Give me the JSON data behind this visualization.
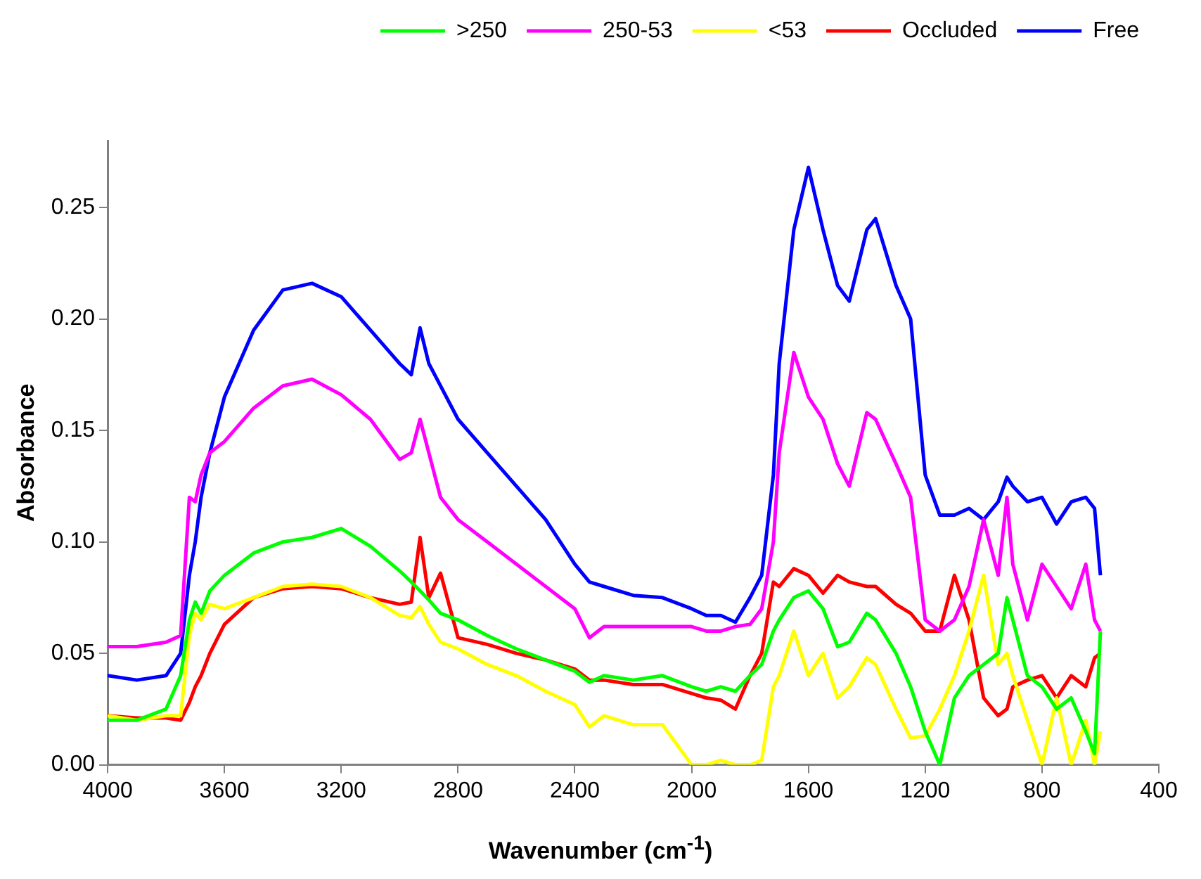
{
  "chart_data": {
    "type": "line",
    "xlabel": "Wavenumber (cm$^{-1}$)",
    "ylabel": "Absorbance",
    "legend": "top right",
    "grid": false,
    "marker": "none",
    "line_style": "solid",
    "x": [
      4000,
      3900,
      3800,
      3750,
      3720,
      3700,
      3680,
      3650,
      3600,
      3500,
      3400,
      3300,
      3200,
      3100,
      3000,
      2960,
      2930,
      2900,
      2860,
      2800,
      2700,
      2600,
      2500,
      2400,
      2350,
      2300,
      2200,
      2100,
      2000,
      1950,
      1900,
      1850,
      1800,
      1760,
      1720,
      1700,
      1650,
      1600,
      1550,
      1500,
      1460,
      1400,
      1370,
      1300,
      1250,
      1200,
      1150,
      1100,
      1050,
      1000,
      950,
      920,
      900,
      850,
      800,
      750,
      700,
      650,
      620,
      600
    ],
    "xlim": [
      4000,
      400
    ],
    "xticks": [
      4000,
      3600,
      3200,
      2800,
      2400,
      2000,
      1600,
      1200,
      800,
      400
    ],
    "ylim": [
      0,
      0.28
    ],
    "yticks": [
      {
        "value": 0,
        "label": "0.00"
      },
      {
        "value": 0.05,
        "label": "0.05"
      },
      {
        "value": 0.1,
        "label": "0.10"
      },
      {
        "value": 0.15,
        "label": "0.15"
      },
      {
        "value": 0.2,
        "label": "0.20"
      },
      {
        "value": 0.25,
        "label": "0.25"
      }
    ],
    "series": [
      {
        "name": ">250",
        "color": "#00ff00",
        "values": [
          0.02,
          0.02,
          0.025,
          0.04,
          0.065,
          0.073,
          0.068,
          0.078,
          0.085,
          0.095,
          0.1,
          0.102,
          0.106,
          0.098,
          0.087,
          0.082,
          0.078,
          0.074,
          0.068,
          0.065,
          0.058,
          0.052,
          0.047,
          0.042,
          0.037,
          0.04,
          0.038,
          0.04,
          0.035,
          0.033,
          0.035,
          0.033,
          0.04,
          0.045,
          0.06,
          0.065,
          0.075,
          0.078,
          0.07,
          0.053,
          0.055,
          0.068,
          0.065,
          0.05,
          0.035,
          0.015,
          0.0,
          0.03,
          0.04,
          0.045,
          0.05,
          0.075,
          0.065,
          0.04,
          0.035,
          0.025,
          0.03,
          0.015,
          0.005,
          0.06
        ]
      },
      {
        "name": "250-53",
        "color": "#ff00ff",
        "values": [
          0.053,
          0.053,
          0.055,
          0.058,
          0.12,
          0.118,
          0.13,
          0.14,
          0.145,
          0.16,
          0.17,
          0.173,
          0.166,
          0.155,
          0.137,
          0.14,
          0.155,
          0.14,
          0.12,
          0.11,
          0.1,
          0.09,
          0.08,
          0.07,
          0.057,
          0.062,
          0.062,
          0.062,
          0.062,
          0.06,
          0.06,
          0.062,
          0.063,
          0.07,
          0.1,
          0.14,
          0.185,
          0.165,
          0.155,
          0.135,
          0.125,
          0.158,
          0.155,
          0.135,
          0.12,
          0.065,
          0.06,
          0.065,
          0.08,
          0.11,
          0.085,
          0.12,
          0.09,
          0.065,
          0.09,
          0.08,
          0.07,
          0.09,
          0.065,
          0.06
        ]
      },
      {
        "name": "<53",
        "color": "#ffff00",
        "values": [
          0.022,
          0.02,
          0.022,
          0.022,
          0.058,
          0.068,
          0.065,
          0.072,
          0.07,
          0.075,
          0.08,
          0.081,
          0.08,
          0.075,
          0.067,
          0.066,
          0.071,
          0.063,
          0.055,
          0.052,
          0.045,
          0.04,
          0.033,
          0.027,
          0.017,
          0.022,
          0.018,
          0.018,
          0.0,
          0.0,
          0.002,
          0.0,
          0.0,
          0.002,
          0.035,
          0.04,
          0.06,
          0.04,
          0.05,
          0.03,
          0.035,
          0.048,
          0.045,
          0.025,
          0.012,
          0.013,
          0.025,
          0.04,
          0.06,
          0.085,
          0.045,
          0.05,
          0.04,
          0.02,
          0.0,
          0.03,
          0.0,
          0.02,
          0.0,
          0.015
        ]
      },
      {
        "name": "Occluded",
        "color": "#ff0000",
        "values": [
          0.022,
          0.021,
          0.021,
          0.02,
          0.028,
          0.035,
          0.04,
          0.05,
          0.063,
          0.075,
          0.079,
          0.08,
          0.079,
          0.075,
          0.072,
          0.073,
          0.102,
          0.075,
          0.086,
          0.057,
          0.054,
          0.05,
          0.047,
          0.043,
          0.038,
          0.038,
          0.036,
          0.036,
          0.032,
          0.03,
          0.029,
          0.025,
          0.04,
          0.05,
          0.082,
          0.08,
          0.088,
          0.085,
          0.077,
          0.085,
          0.082,
          0.08,
          0.08,
          0.072,
          0.068,
          0.06,
          0.06,
          0.085,
          0.065,
          0.03,
          0.022,
          0.025,
          0.035,
          0.038,
          0.04,
          0.03,
          0.04,
          0.035,
          0.048,
          0.05
        ]
      },
      {
        "name": "Free",
        "color": "#0000ff",
        "values": [
          0.04,
          0.038,
          0.04,
          0.05,
          0.085,
          0.1,
          0.12,
          0.14,
          0.165,
          0.195,
          0.213,
          0.216,
          0.21,
          0.195,
          0.18,
          0.175,
          0.196,
          0.18,
          0.17,
          0.155,
          0.14,
          0.125,
          0.11,
          0.09,
          0.082,
          0.08,
          0.076,
          0.075,
          0.07,
          0.067,
          0.067,
          0.064,
          0.075,
          0.085,
          0.13,
          0.18,
          0.24,
          0.268,
          0.24,
          0.215,
          0.208,
          0.24,
          0.245,
          0.215,
          0.2,
          0.13,
          0.112,
          0.112,
          0.115,
          0.11,
          0.118,
          0.129,
          0.125,
          0.118,
          0.12,
          0.108,
          0.118,
          0.12,
          0.115,
          0.085
        ]
      }
    ]
  }
}
